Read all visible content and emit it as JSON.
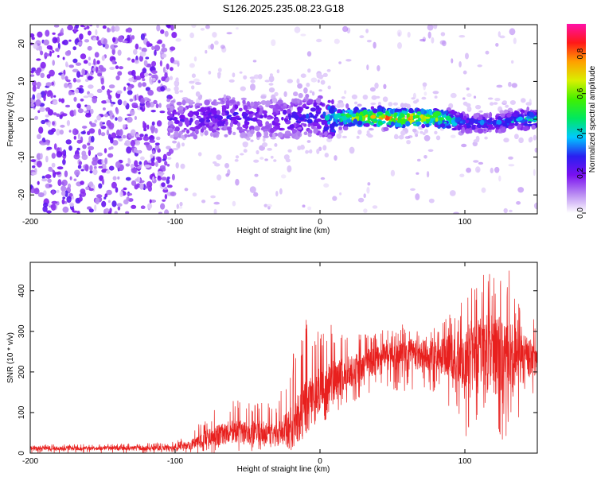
{
  "title": "S126.2025.235.08.23.G18",
  "colors": {
    "series": "#e8201e",
    "axis": "#000000",
    "background": "#ffffff"
  },
  "chart_data": [
    {
      "type": "heatmap",
      "title": "S126.2025.235.08.23.G18",
      "xlabel": "Height of straight line (km)",
      "ylabel": "Frequency (Hz)",
      "xlim": [
        -200,
        150
      ],
      "ylim": [
        -25,
        25
      ],
      "x_ticks": [
        -200,
        -100,
        0,
        100
      ],
      "x_tick_labels": [
        "-200",
        "-100",
        "0",
        "100"
      ],
      "y_ticks": [
        -20,
        -10,
        0,
        10,
        20
      ],
      "y_tick_labels": [
        "-20",
        "-10",
        "0",
        "10",
        "20"
      ],
      "colorbar": {
        "label": "Normalized spectral amplitude",
        "range": [
          0.0,
          0.95
        ],
        "ticks": [
          0.0,
          0.2,
          0.4,
          0.6,
          0.8
        ],
        "tick_labels": [
          "0.0",
          "0.2",
          "0.4",
          "0.6",
          "0.8"
        ]
      },
      "ridge": {
        "description_free": true,
        "x": [
          -100,
          -80,
          -60,
          -40,
          -20,
          0,
          10,
          20,
          40,
          60,
          80,
          100,
          120,
          140,
          150
        ],
        "frequency": [
          0,
          0,
          1,
          0,
          0,
          1,
          0,
          0.5,
          0.5,
          0.3,
          0.5,
          -1,
          -1,
          0,
          0
        ],
        "peak_amplitude": [
          0.25,
          0.28,
          0.3,
          0.25,
          0.3,
          0.35,
          0.55,
          0.75,
          0.85,
          0.9,
          0.8,
          0.4,
          0.35,
          0.5,
          0.5
        ]
      }
    },
    {
      "type": "line",
      "xlabel": "Height of straight line (km)",
      "ylabel": "SNR (10 * v/v)",
      "xlim": [
        -200,
        150
      ],
      "ylim": [
        0,
        470
      ],
      "x_ticks": [
        -200,
        -100,
        0,
        100
      ],
      "x_tick_labels": [
        "-200",
        "-100",
        "0",
        "100"
      ],
      "y_ticks": [
        0,
        100,
        200,
        300,
        400
      ],
      "y_tick_labels": [
        "0",
        "100",
        "200",
        "300",
        "400"
      ],
      "series": [
        {
          "name": "SNR",
          "color": "#e8201e",
          "x": [
            -200,
            -150,
            -100,
            -90,
            -80,
            -70,
            -60,
            -50,
            -40,
            -30,
            -20,
            -10,
            0,
            10,
            20,
            40,
            60,
            80,
            100,
            110,
            120,
            130,
            140,
            150
          ],
          "mean": [
            12,
            12,
            13,
            20,
            35,
            45,
            55,
            50,
            52,
            45,
            60,
            110,
            155,
            180,
            200,
            235,
            245,
            240,
            235,
            250,
            240,
            235,
            230,
            240
          ],
          "max": [
            22,
            22,
            28,
            50,
            90,
            115,
            135,
            140,
            130,
            120,
            250,
            330,
            330,
            320,
            300,
            300,
            320,
            310,
            380,
            450,
            460,
            460,
            350,
            330
          ],
          "min": [
            0,
            0,
            0,
            0,
            0,
            0,
            5,
            5,
            5,
            0,
            10,
            30,
            70,
            100,
            120,
            160,
            150,
            150,
            40,
            20,
            10,
            30,
            80,
            170
          ]
        }
      ]
    }
  ]
}
